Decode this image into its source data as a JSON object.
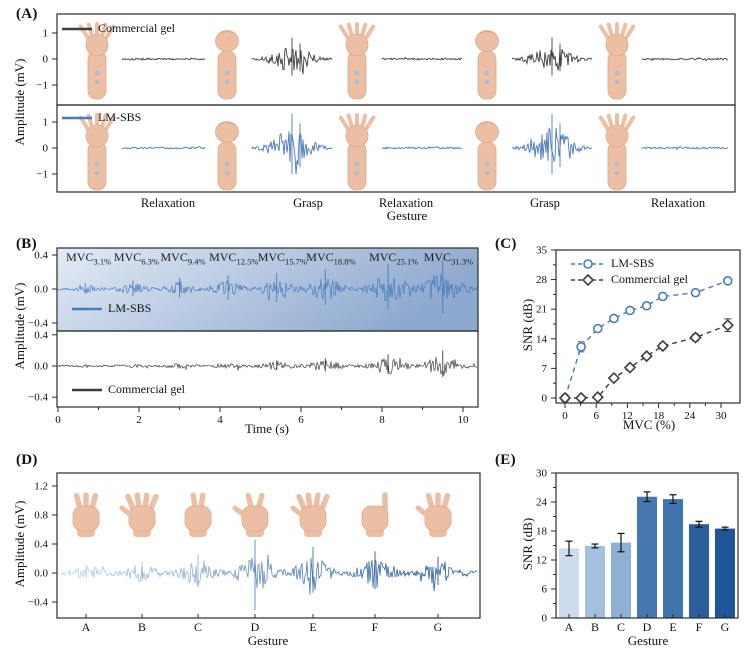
{
  "panel_labels": {
    "a": "(A)",
    "b": "(B)",
    "c": "(C)",
    "d": "(D)",
    "e": "(E)"
  },
  "colors": {
    "lm_sbs": "#4a7ab8",
    "commercial_gel": "#3f3f3f",
    "axis": "#2b2b2b",
    "text": "#111111",
    "skin": "#ecbfa4",
    "skin_shade": "#dcaa8d",
    "electrode": "#b7bdc7"
  },
  "chart_data": [
    {
      "id": "A",
      "type": "line",
      "description": "EMG traces during alternating relaxation and grasp gestures",
      "ylabel": "Amplitude (mV)",
      "xlabel": "Gesture",
      "yticks": [
        "1",
        "0",
        "-1"
      ],
      "ylim": [
        -1.75,
        1.75
      ],
      "sequence": [
        "Relaxation",
        "Grasp",
        "Relaxation",
        "Grasp",
        "Relaxation"
      ],
      "arm_poses": [
        "open",
        "fist",
        "open",
        "fist",
        "open"
      ],
      "series": [
        {
          "name": "Commercial gel",
          "color": "#3f3f3f",
          "peak_mV": 0.85
        },
        {
          "name": "LM-SBS",
          "color": "#4a7ab8",
          "peak_mV": 1.35
        }
      ]
    },
    {
      "id": "B",
      "type": "line",
      "description": "EMG amplitude vs time at increasing MVC levels",
      "ylabel": "Amplitude (mV)",
      "xlabel": "Time (s)",
      "xticks": [
        "0",
        "2",
        "4",
        "6",
        "8",
        "10"
      ],
      "yticks": [
        "0.4",
        "0.0",
        "-0.4"
      ],
      "xlim": [
        0,
        10.35
      ],
      "ylim": [
        -0.5,
        0.5
      ],
      "mvc_prefix": "MVC",
      "mvc_pcts": [
        "3.1%",
        "6.3%",
        "9.4%",
        "12.5%",
        "15.7%",
        "18.8%",
        "25.1%",
        "31.3%"
      ],
      "burst_times_s": [
        0.67,
        1.85,
        3.0,
        4.2,
        5.4,
        6.6,
        8.15,
        9.5
      ],
      "series": [
        {
          "name": "LM-SBS",
          "color": "#4a7ab8",
          "peaks_mV": [
            0.07,
            0.1,
            0.13,
            0.16,
            0.19,
            0.23,
            0.3,
            0.36
          ]
        },
        {
          "name": "Commercial gel",
          "color": "#3f3f3f",
          "peaks_mV": [
            0.015,
            0.02,
            0.03,
            0.05,
            0.07,
            0.1,
            0.15,
            0.2
          ]
        }
      ],
      "background_gradient": [
        "#e3ebf6",
        "#8ea9cf"
      ]
    },
    {
      "id": "C",
      "type": "line",
      "description": "SNR vs MVC for both electrodes",
      "xlabel": "MVC (%)",
      "ylabel": "SNR (dB)",
      "xticks": [
        "0",
        "6",
        "12",
        "18",
        "24",
        "30"
      ],
      "yticks": [
        "0",
        "7",
        "14",
        "21",
        "28",
        "35"
      ],
      "xlim": [
        -1.7,
        33
      ],
      "ylim": [
        0,
        35
      ],
      "legend_position": "top-left",
      "grid": false,
      "x": [
        0,
        3.1,
        6.3,
        9.4,
        12.5,
        15.7,
        18.8,
        25.1,
        31.3
      ],
      "series": [
        {
          "name": "LM-SBS",
          "marker": "circle",
          "color": "#4a7ab8",
          "values": [
            0,
            12.1,
            16.4,
            18.8,
            20.7,
            21.8,
            24.0,
            24.9,
            27.7
          ],
          "errors": [
            0.4,
            1.2,
            0.5,
            0.5,
            0.5,
            0.5,
            0.6,
            0.5,
            0.6
          ]
        },
        {
          "name": "Commercial gel",
          "marker": "diamond",
          "color": "#3f3f3f",
          "values": [
            0,
            0,
            0.2,
            4.7,
            7.2,
            9.9,
            12.3,
            14.3,
            17.2
          ],
          "errors": [
            0.3,
            0.3,
            0.3,
            0.5,
            0.5,
            0.5,
            0.7,
            0.8,
            1.5
          ]
        }
      ]
    },
    {
      "id": "D",
      "type": "line",
      "description": "EMG trace for seven hand gestures A-G",
      "ylabel": "Amplitude (mV)",
      "xlabel": "Gesture",
      "yticks": [
        "1.2",
        "0.8",
        "0.4",
        "0.0",
        "-0.4"
      ],
      "ylim": [
        -0.75,
        1.45
      ],
      "categories": [
        "A",
        "B",
        "C",
        "D",
        "E",
        "F",
        "G"
      ],
      "peaks_mV": [
        0.12,
        0.16,
        0.26,
        0.46,
        0.36,
        0.3,
        0.22
      ],
      "hands": [
        {
          "fingers": 3,
          "thumb": false
        },
        {
          "fingers": 4,
          "thumb": true
        },
        {
          "fingers": 2,
          "thumb": false
        },
        {
          "fingers": 2,
          "thumb": true
        },
        {
          "fingers": 4,
          "thumb": true
        },
        {
          "fingers": 1,
          "thumb": false
        },
        {
          "fingers": 3,
          "thumb": true
        }
      ],
      "trace_gradient": [
        "#c9d9ea",
        "#a5c0dc",
        "#8fb0d4",
        "#5c88bc",
        "#4074ad",
        "#2a5e9f",
        "#1f5699"
      ]
    },
    {
      "id": "E",
      "type": "bar",
      "description": "SNR per gesture",
      "xlabel": "Gesture",
      "ylabel": "SNR (dB)",
      "categories": [
        "A",
        "B",
        "C",
        "D",
        "E",
        "F",
        "G"
      ],
      "values": [
        14.4,
        14.9,
        15.6,
        25.1,
        24.6,
        19.4,
        18.5
      ],
      "errors": [
        1.5,
        0.4,
        1.9,
        1.0,
        0.9,
        0.6,
        0.3
      ],
      "bar_colors": [
        "#ccdcec",
        "#a5c0dc",
        "#8fb0d4",
        "#4578b0",
        "#4074ad",
        "#2a5e9f",
        "#1f5699"
      ],
      "yticks": [
        "0",
        "6",
        "12",
        "18",
        "24",
        "30"
      ],
      "ylim": [
        0,
        30
      ]
    }
  ]
}
